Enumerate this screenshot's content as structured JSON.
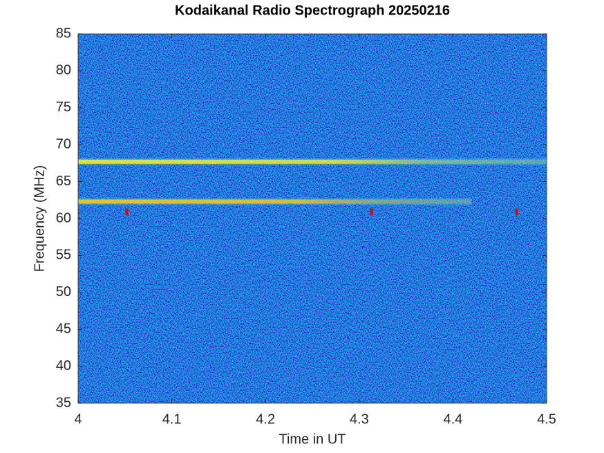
{
  "chart_data": {
    "type": "spectrogram",
    "title": "Kodaikanal Radio Spectrograph  20250216",
    "x_label": "Time in UT",
    "y_label": "Frequency (MHz)",
    "xlim": [
      4,
      4.5
    ],
    "xticks": [
      4,
      4.1,
      4.2,
      4.3,
      4.4,
      4.5
    ],
    "ylim": [
      35,
      85
    ],
    "yticks": [
      35,
      40,
      45,
      50,
      55,
      60,
      65,
      70,
      75,
      80,
      85
    ],
    "bands": [
      {
        "frequency": 67.7,
        "start": 4,
        "end": 4.5,
        "color": "#e8e030"
      },
      {
        "frequency": 62.3,
        "start": 4,
        "end": 4.42,
        "color": "#f0c020"
      }
    ],
    "bursts": [
      {
        "time": 4.052,
        "frequency": 60.9,
        "color": "#c01010"
      },
      {
        "time": 4.313,
        "frequency": 60.9,
        "color": "#c01010"
      },
      {
        "time": 4.468,
        "frequency": 60.9,
        "color": "#c01010"
      }
    ]
  }
}
